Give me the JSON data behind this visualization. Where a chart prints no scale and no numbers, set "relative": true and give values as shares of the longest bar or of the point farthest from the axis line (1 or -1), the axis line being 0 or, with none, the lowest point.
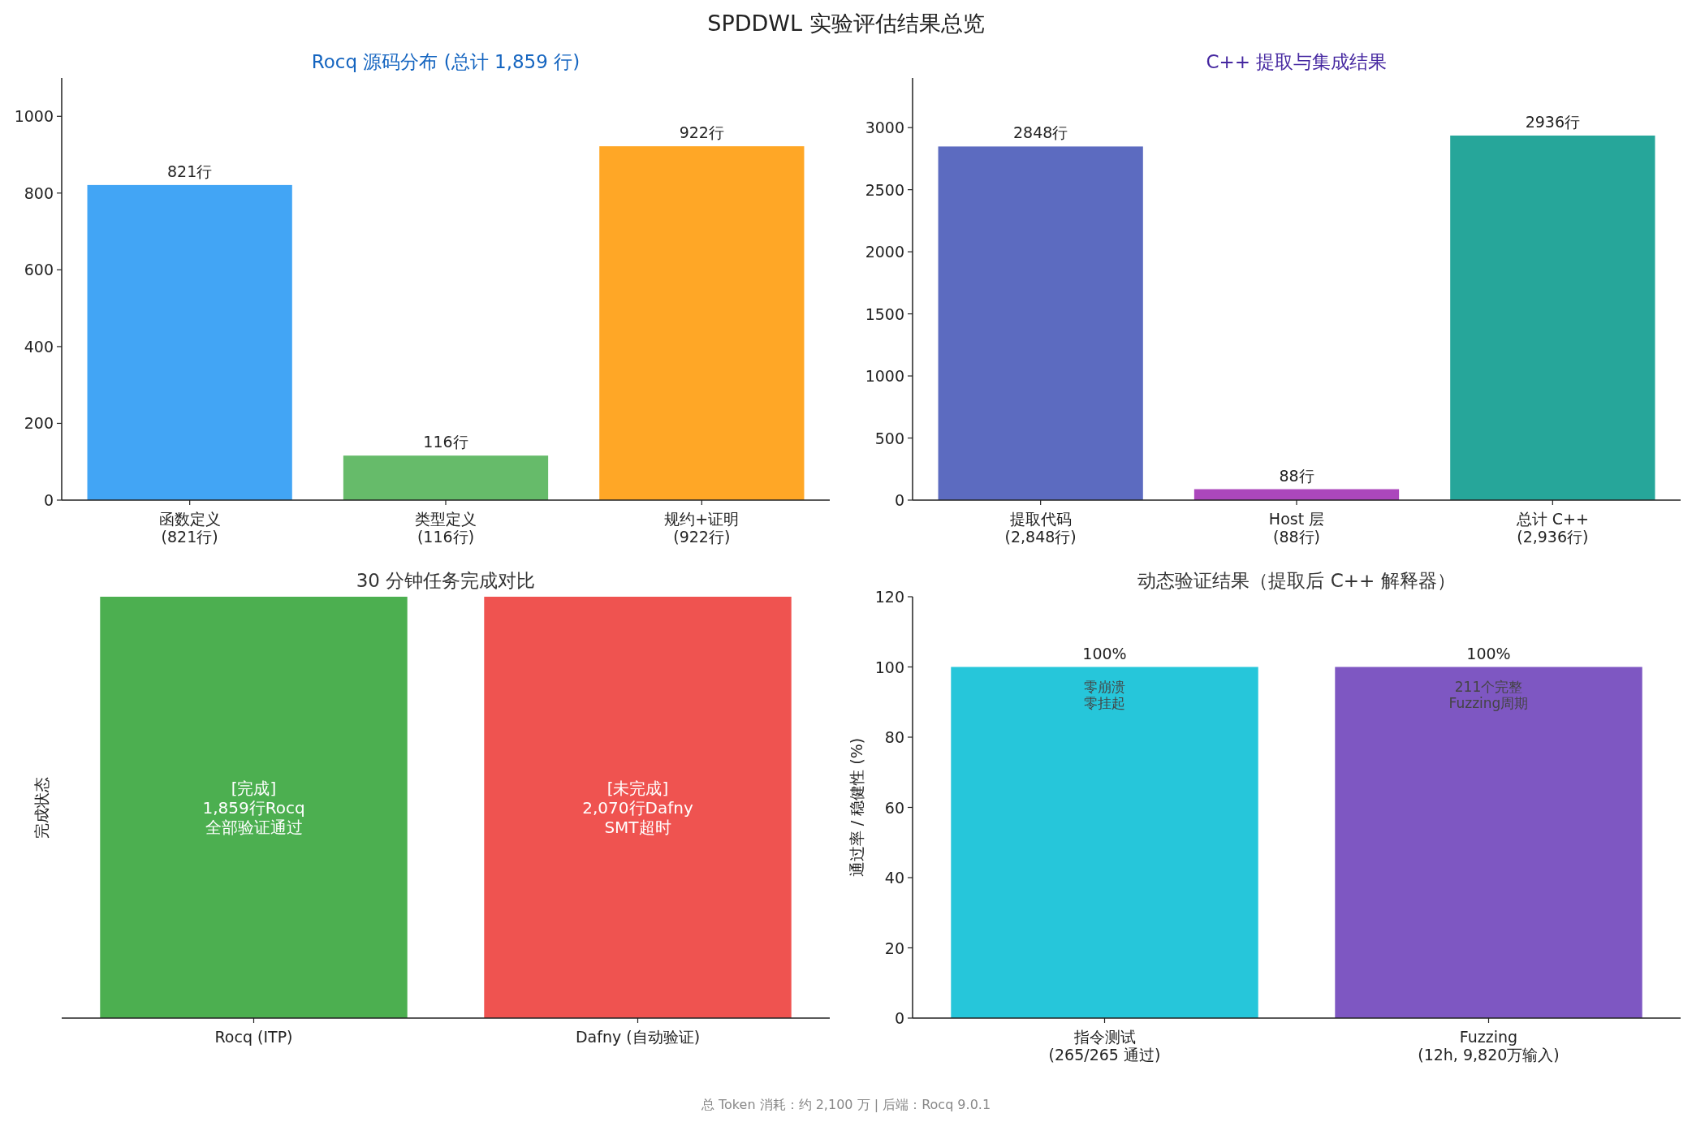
{
  "chart_data": [
    {
      "type": "other",
      "title": "SPDDWL 实验评估结果总览",
      "annotations": [
        "总 Token 消耗：约 2,100 万 | 后端：Rocq 9.0.1"
      ]
    },
    {
      "type": "bar",
      "title": "Rocq 源码分布 (总计 1,859 行)",
      "categories": [
        "函数定义\n(821行)",
        "类型定义\n(116行)",
        "规约+证明\n(922行)"
      ],
      "values": [
        821,
        116,
        922
      ],
      "colors": [
        "#42a5f5",
        "#66bb6a",
        "#ffa726"
      ],
      "value_labels": [
        "821行",
        "116行",
        "922行"
      ],
      "ylim": [
        0,
        1100
      ],
      "yticks": [
        0,
        200,
        400,
        600,
        800,
        1000
      ]
    },
    {
      "type": "bar",
      "title": "C++ 提取与集成结果",
      "categories": [
        "提取代码\n(2,848行)",
        "Host 层\n(88行)",
        "总计 C++\n(2,936行)"
      ],
      "values": [
        2848,
        88,
        2936
      ],
      "colors": [
        "#5c6bc0",
        "#ab47bc",
        "#26a69a"
      ],
      "value_labels": [
        "2848行",
        "88行",
        "2936行"
      ],
      "ylim": [
        0,
        3400
      ],
      "yticks": [
        0,
        500,
        1000,
        1500,
        2000,
        2500,
        3000
      ]
    },
    {
      "type": "bar",
      "title": "30 分钟任务完成对比",
      "ylabel": "完成状态",
      "relative": true,
      "categories": [
        "Rocq (ITP)",
        "Dafny (自动验证)"
      ],
      "values": [
        1,
        1
      ],
      "colors": [
        "#4caf50",
        "#ef5350"
      ],
      "annotations": [
        "[完成]",
        "1,859行Rocq",
        "全部验证通过",
        "[未完成]",
        "2,070行Dafny",
        "SMT超时"
      ]
    },
    {
      "type": "bar",
      "title": "动态验证结果（提取后 C++ 解释器）",
      "ylabel": "通过率 / 稳健性 (%)",
      "categories": [
        "指令测试\n(265/265 通过)",
        "Fuzzing\n(12h, 9,820万输入)"
      ],
      "values": [
        100,
        100
      ],
      "colors": [
        "#26c6da",
        "#7e57c2"
      ],
      "value_labels": [
        "100%",
        "100%"
      ],
      "ylim": [
        0,
        120
      ],
      "yticks": [
        0,
        20,
        40,
        60,
        80,
        100,
        120
      ],
      "annotations": [
        "零崩溃",
        "零挂起",
        "211个完整",
        "Fuzzing周期"
      ]
    }
  ]
}
